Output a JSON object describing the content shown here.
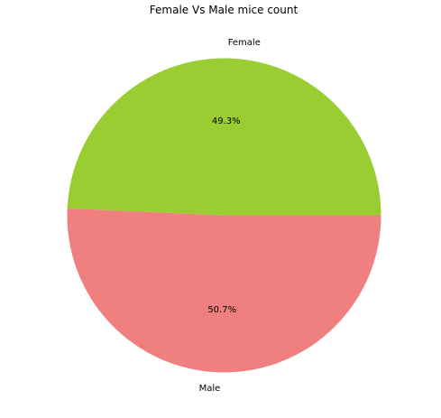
{
  "chart_data": {
    "type": "pie",
    "title": "Female Vs Male mice count",
    "slices": [
      {
        "label": "Female",
        "value": 49.3,
        "percent_label": "49.3%",
        "color": "#9acd32"
      },
      {
        "label": "Male",
        "value": 50.7,
        "percent_label": "50.7%",
        "color": "#f08080"
      }
    ],
    "start_angle_deg": 0,
    "direction": "counterclockwise",
    "legend": "none"
  }
}
